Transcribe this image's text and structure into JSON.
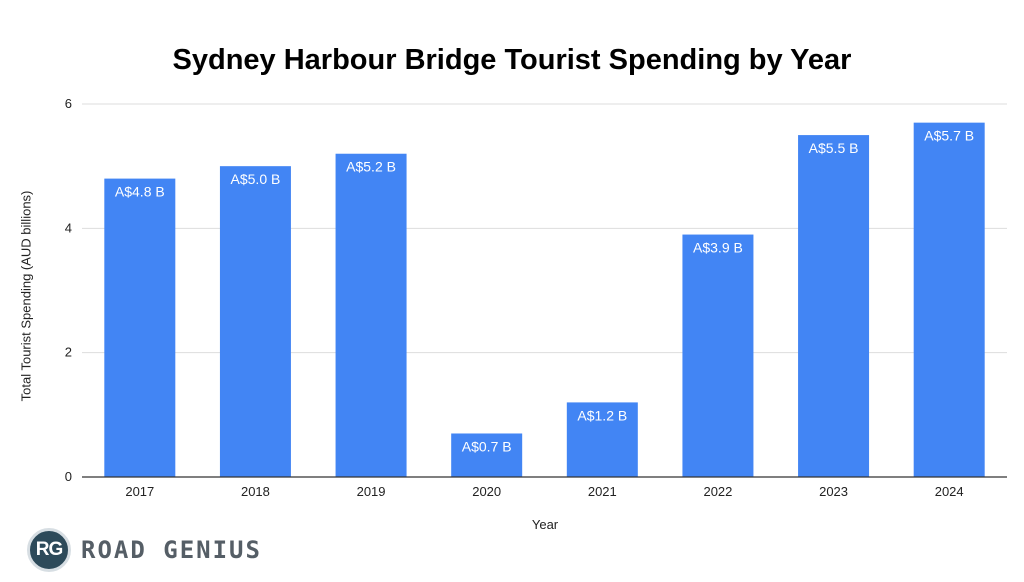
{
  "chart_data": {
    "type": "bar",
    "title": "Sydney Harbour Bridge Tourist Spending by Year",
    "xlabel": "Year",
    "ylabel": "Total Tourist Spending (AUD billions)",
    "categories": [
      "2017",
      "2018",
      "2019",
      "2020",
      "2021",
      "2022",
      "2023",
      "2024"
    ],
    "values": [
      4.8,
      5.0,
      5.2,
      0.7,
      1.2,
      3.9,
      5.5,
      5.7
    ],
    "data_labels": [
      "A$4.8 B",
      "A$5.0 B",
      "A$5.2 B",
      "A$0.7 B",
      "A$1.2 B",
      "A$3.9 B",
      "A$5.5 B",
      "A$5.7 B"
    ],
    "ylim": [
      0,
      6
    ],
    "yticks": [
      "0",
      "2",
      "4",
      "6"
    ],
    "grid": true,
    "legend": "none",
    "bar_color": "#4285f4",
    "gridline_color": "#dddddd",
    "axis_color": "#333333"
  },
  "logo": {
    "badge_text": "RG",
    "name": "ROAD GENIUS",
    "badge_color": "#2d4a5a",
    "text_color": "#555e66"
  }
}
